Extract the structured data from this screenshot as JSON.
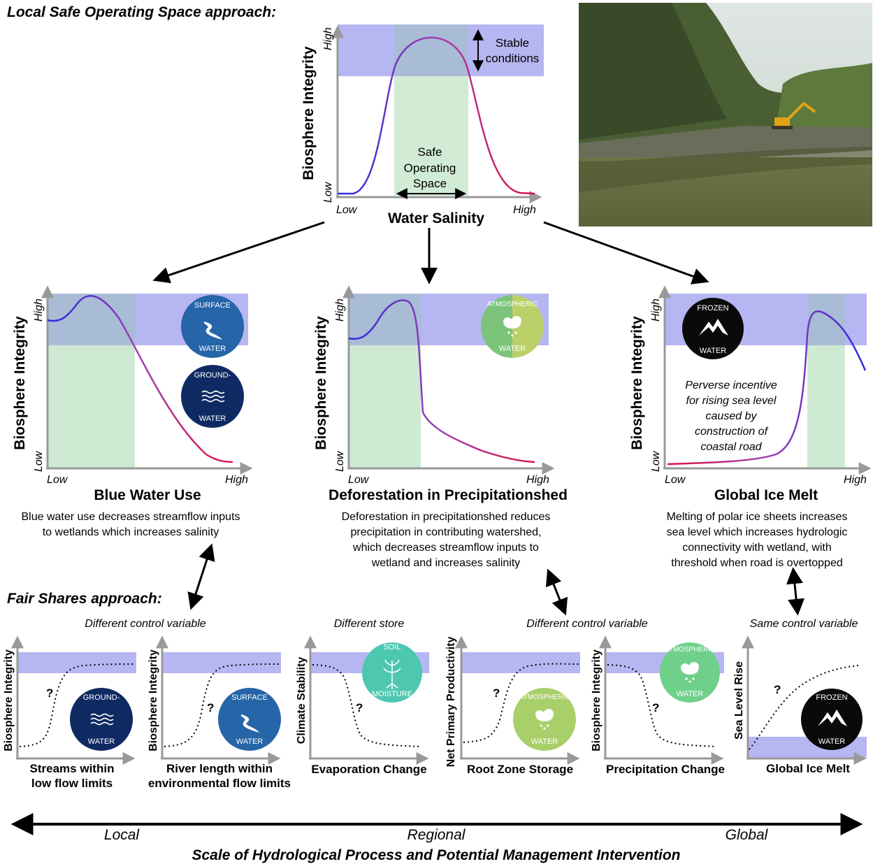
{
  "header": {
    "local_title": "Local Safe Operating Space approach:",
    "fair_title": "Fair Shares approach:"
  },
  "top_chart": {
    "ylabel": "Biosphere Integrity",
    "xlabel": "Water Salinity",
    "y_high": "High",
    "y_low": "Low",
    "x_low": "Low",
    "x_high": "High",
    "stable_label_1": "Stable",
    "stable_label_2": "conditions",
    "safe_label_1": "Safe",
    "safe_label_2": "Operating",
    "safe_label_3": "Space"
  },
  "photo": {
    "description_icon": "mangrove-photo"
  },
  "mid_charts": [
    {
      "title": "Blue Water Use",
      "ylabel": "Biosphere Integrity",
      "y_high": "High",
      "y_low": "Low",
      "x_low": "Low",
      "x_high": "High",
      "desc": [
        "Blue water use decreases streamflow inputs",
        "to wetlands which increases salinity"
      ],
      "badges": [
        {
          "top": "SURFACE",
          "bottom": "WATER",
          "color": "#2565a8",
          "icon": "stream-icon"
        },
        {
          "top": "GROUND-",
          "bottom": "WATER",
          "color": "#0f2a63",
          "icon": "waves-icon"
        }
      ]
    },
    {
      "title": "Deforestation in Precipitationshed",
      "ylabel": "Biosphere Integrity",
      "y_high": "High",
      "y_low": "Low",
      "x_low": "Low",
      "x_high": "High",
      "desc": [
        "Deforestation in precipitationshed reduces",
        "precipitation in contributing watershed,",
        "which decreases streamflow inputs to",
        "wetland and increases salinity"
      ],
      "badges": [
        {
          "top": "ATMOSPHERIC",
          "bottom": "WATER",
          "color": "#8fc96b",
          "icon": "cloud-rain-icon"
        }
      ]
    },
    {
      "title": "Global Ice Melt",
      "ylabel": "Biosphere Integrity",
      "y_high": "High",
      "y_low": "Low",
      "x_low": "Low",
      "x_high": "High",
      "desc": [
        "Melting of polar ice sheets increases",
        "sea level which increases hydrologic",
        "connectivity with wetland, with",
        "threshold when road is overtopped"
      ],
      "note": [
        "Perverse incentive",
        "for rising sea level",
        "caused by",
        "construction of",
        "coastal road"
      ],
      "badges": [
        {
          "top": "FROZEN",
          "bottom": "WATER",
          "color": "#0a0a0a",
          "icon": "mountain-icon"
        }
      ]
    }
  ],
  "group_labels": {
    "g1": "Different control variable",
    "g2": "Different store",
    "g3": "Different control variable",
    "g4": "Same control variable"
  },
  "small_charts": [
    {
      "ylabel": "Biosphere Integrity",
      "xlabel": [
        "Streams within",
        "low flow limits"
      ],
      "q": "?",
      "badge": {
        "top": "GROUND-",
        "bottom": "WATER",
        "color": "#0f2a63",
        "icon": "waves-icon"
      }
    },
    {
      "ylabel": "Biosphere Integrity",
      "xlabel": [
        "River length within",
        "environmental flow limits"
      ],
      "q": "?",
      "badge": {
        "top": "SURFACE",
        "bottom": "WATER",
        "color": "#2565a8",
        "icon": "stream-icon"
      }
    },
    {
      "ylabel": "Climate Stability",
      "xlabel": [
        "Evaporation Change"
      ],
      "q": "?",
      "badge": {
        "top": "SOIL",
        "bottom": "MOISTURE",
        "color": "#4ec7b0",
        "icon": "plant-icon"
      }
    },
    {
      "ylabel": "Net Primary Productivity",
      "xlabel": [
        "Root Zone Storage"
      ],
      "q": "?",
      "badge": {
        "top": "ATMOSPHERIC",
        "bottom": "WATER",
        "color": "#a9cf6a",
        "icon": "cloud-rain-icon"
      }
    },
    {
      "ylabel": "Biosphere Integrity",
      "xlabel": [
        "Precipitation Change"
      ],
      "q": "?",
      "badge": {
        "top": "ATMOSPHERIC",
        "bottom": "WATER",
        "color": "#6fd08c",
        "icon": "cloud-rain-icon"
      }
    },
    {
      "ylabel": "Sea Level Rise",
      "xlabel": [
        "Global Ice Melt"
      ],
      "q": "?",
      "badge": {
        "top": "FROZEN",
        "bottom": "WATER",
        "color": "#0a0a0a",
        "icon": "mountain-icon"
      }
    }
  ],
  "scale": {
    "local": "Local",
    "regional": "Regional",
    "global": "Global",
    "caption": "Scale of Hydrological Process and Potential Management Intervention"
  }
}
